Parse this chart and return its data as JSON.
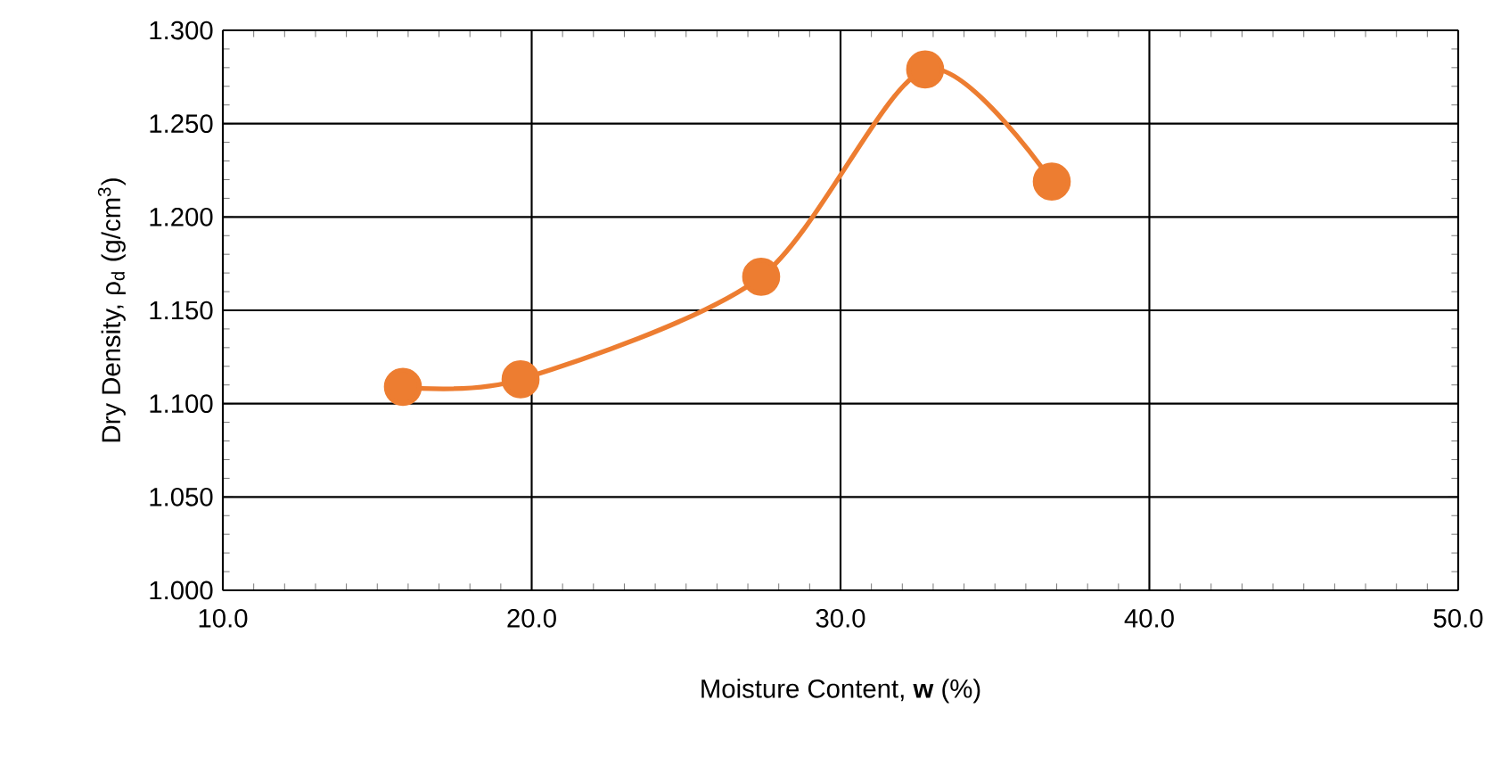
{
  "chart_data": {
    "type": "line",
    "xlabel": "Moisture Content, **w** (%)",
    "ylabel": "Dry Density, ρ$_{d}$ (g/cm$^{3}$)",
    "x": [
      15.83,
      19.64,
      27.43,
      32.74,
      36.84
    ],
    "series": [
      {
        "color": "#ed7d31",
        "values": [
          1.109,
          1.113,
          1.168,
          1.279,
          1.219
        ]
      }
    ],
    "xlim": [
      10,
      50
    ],
    "ylim": [
      1.0,
      1.3
    ],
    "xticks": [
      {
        "value": 10,
        "label": "10.0"
      },
      {
        "value": 20,
        "label": "20.0"
      },
      {
        "value": 30,
        "label": "30.0"
      },
      {
        "value": 40,
        "label": "40.0"
      },
      {
        "value": 50,
        "label": "50.0"
      }
    ],
    "yticks": [
      {
        "value": 1.0,
        "label": "1.000"
      },
      {
        "value": 1.05,
        "label": "1.050"
      },
      {
        "value": 1.1,
        "label": "1.100"
      },
      {
        "value": 1.15,
        "label": "1.150"
      },
      {
        "value": 1.2,
        "label": "1.200"
      },
      {
        "value": 1.25,
        "label": "1.250"
      },
      {
        "value": 1.3,
        "label": "1.300"
      }
    ],
    "grid": true,
    "marker": "circle",
    "line_style": "solid"
  }
}
